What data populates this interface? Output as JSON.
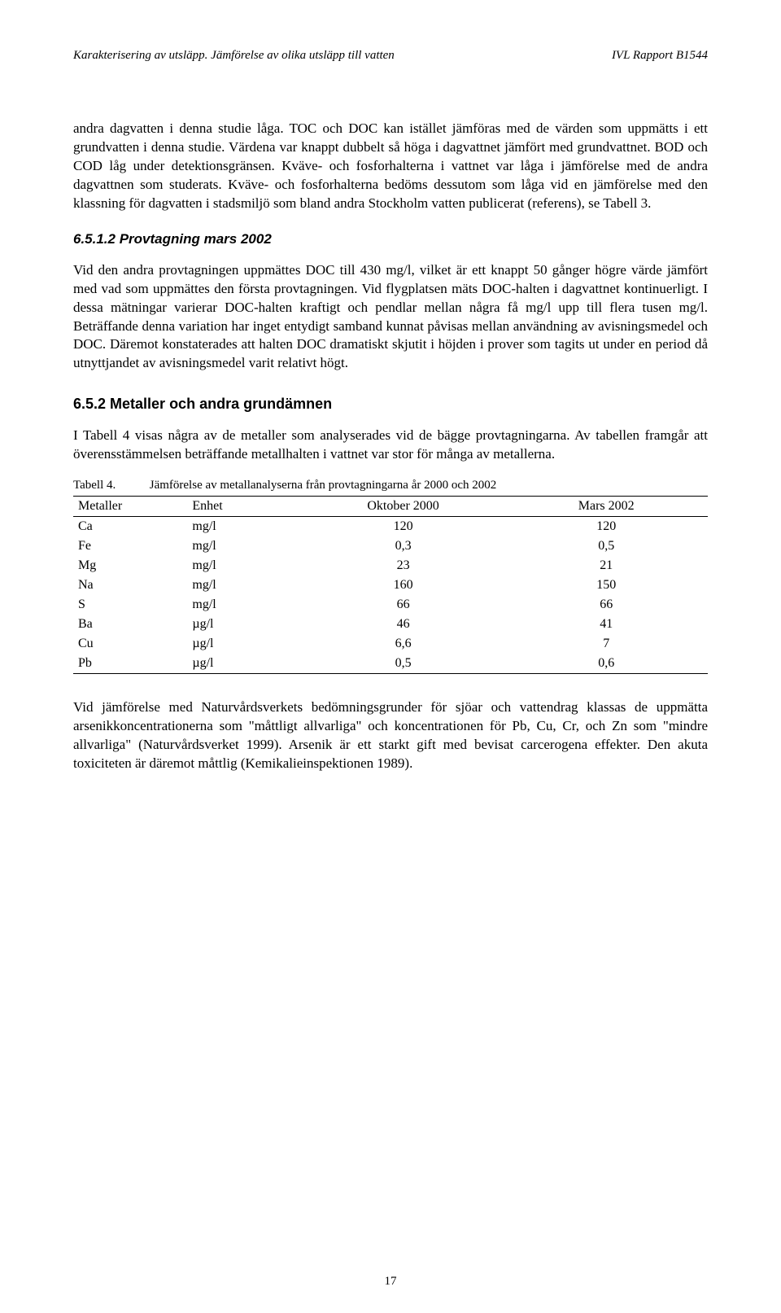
{
  "header": {
    "left": "Karakterisering av utsläpp. Jämförelse av olika utsläpp till vatten",
    "right": "IVL Rapport B1544"
  },
  "para1_continued": "andra dagvatten i denna studie låga. TOC och DOC kan istället jämföras med de värden som uppmätts i ett grundvatten i denna studie. Värdena var knappt dubbelt så höga i dagvattnet jämfört med grundvattnet. BOD och COD låg under detektionsgränsen. Kväve- och fosforhalterna i vattnet var låga i jämförelse med de andra dagvattnen som studerats. Kväve- och fosforhalterna bedöms dessutom som låga vid en jämförelse med den klassning för dagvatten i stadsmiljö som bland andra Stockholm vatten publicerat (referens), se Tabell 3.",
  "section_6_5_1_2": {
    "heading": "6.5.1.2 Provtagning mars 2002",
    "body": "Vid den andra provtagningen uppmättes DOC till 430 mg/l, vilket är ett knappt 50 gånger högre värde jämfört med vad som uppmättes den första provtagningen. Vid flygplatsen mäts DOC-halten i dagvattnet kontinuerligt. I dessa mätningar varierar DOC-halten kraftigt och pendlar mellan några få mg/l upp till flera tusen mg/l. Beträffande denna variation har inget entydigt samband kunnat påvisas mellan användning av avisningsmedel och DOC. Däremot konstaterades att halten DOC dramatiskt skjutit i höjden i prover som tagits ut under en period då utnyttjandet av avisningsmedel varit relativt högt."
  },
  "section_6_5_2": {
    "heading": "6.5.2 Metaller och andra grundämnen",
    "body": "I Tabell 4 visas några av de metaller som analyserades vid de bägge provtagningarna. Av tabellen framgår att överensstämmelsen beträffande metallhalten i vattnet var stor för många av metallerna."
  },
  "table4": {
    "caption_label": "Tabell 4.",
    "caption_text": "Jämförelse av metallanalyserna från provtagningarna år 2000 och 2002",
    "columns": [
      "Metaller",
      "Enhet",
      "Oktober 2000",
      "Mars 2002"
    ],
    "rows": [
      [
        "Ca",
        "mg/l",
        "120",
        "120"
      ],
      [
        "Fe",
        "mg/l",
        "0,3",
        "0,5"
      ],
      [
        "Mg",
        "mg/l",
        "23",
        "21"
      ],
      [
        "Na",
        "mg/l",
        "160",
        "150"
      ],
      [
        "S",
        "mg/l",
        "66",
        "66"
      ],
      [
        "Ba",
        "µg/l",
        "46",
        "41"
      ],
      [
        "Cu",
        "µg/l",
        "6,6",
        "7"
      ],
      [
        "Pb",
        "µg/l",
        "0,5",
        "0,6"
      ]
    ]
  },
  "para_after_table": "Vid jämförelse med Naturvårdsverkets bedömningsgrunder för sjöar och vattendrag klassas de uppmätta arsenikkoncentrationerna som \"måttligt allvarliga\" och koncentrationen för Pb, Cu, Cr, och Zn som \"mindre allvarliga\" (Naturvårdsverket 1999). Arsenik är ett starkt gift med bevisat carcerogena effekter. Den akuta toxiciteten är däremot måttlig (Kemikalieinspektionen 1989).",
  "page_number": "17"
}
